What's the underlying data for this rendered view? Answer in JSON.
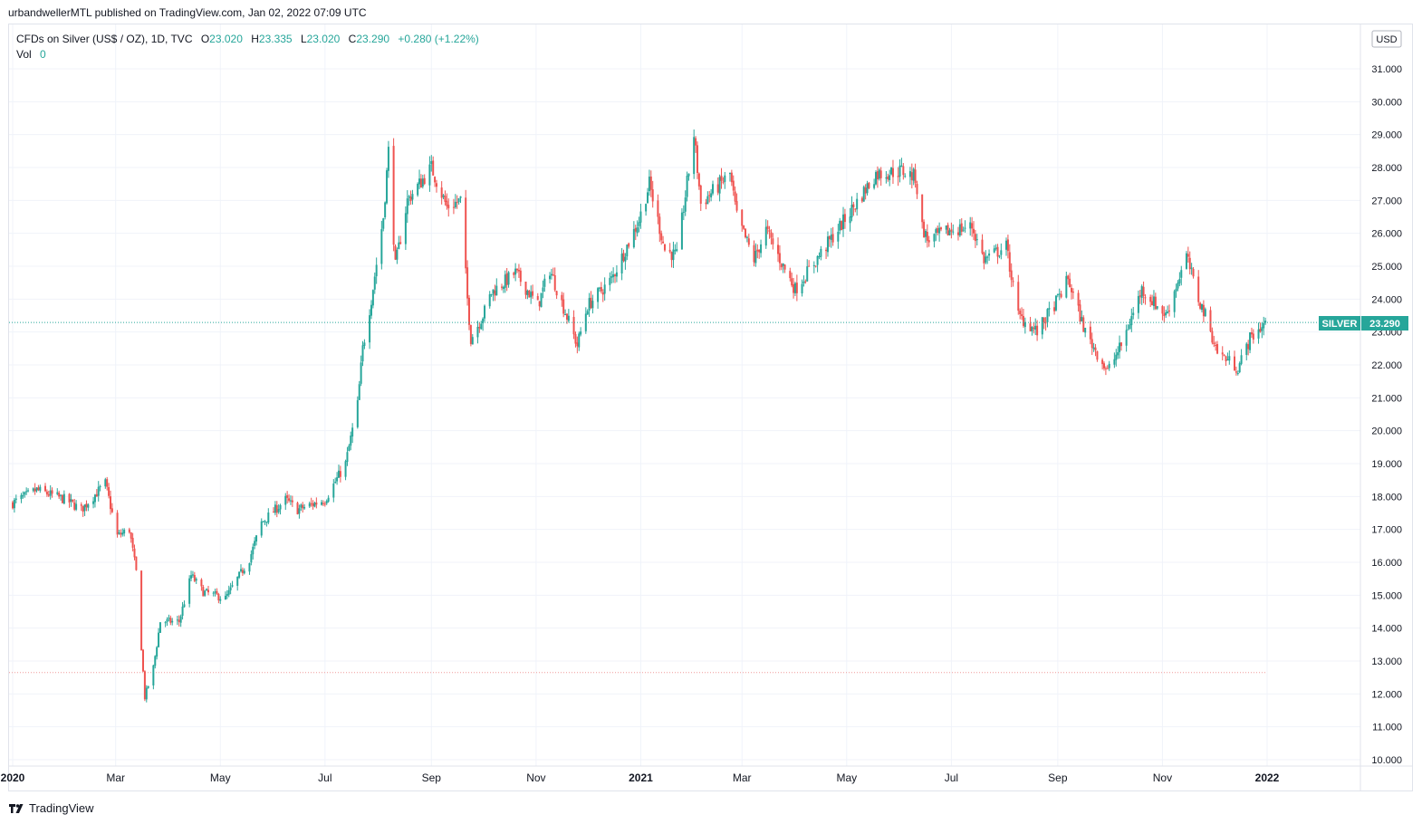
{
  "header": {
    "published_text": "urbandwellerMTL published on TradingView.com, Jan 02, 2022 07:09 UTC"
  },
  "legend": {
    "symbol_text": "CFDs on Silver (US$ / OZ), 1D, TVC",
    "o_label": "O",
    "o_value": "23.020",
    "h_label": "H",
    "h_value": "23.335",
    "l_label": "L",
    "l_value": "23.020",
    "c_label": "C",
    "c_value": "23.290",
    "change_text": "+0.280 (+1.22%)",
    "vol_label": "Vol",
    "vol_value": "0"
  },
  "price_scale": {
    "currency": "USD",
    "last_label": "SILVER",
    "last_value": "23.290"
  },
  "footer": {
    "brand": "TradingView"
  },
  "colors": {
    "up": "#26a69a",
    "down": "#ef5350",
    "grid": "#f0f3fa",
    "text": "#131722"
  },
  "chart_data": {
    "type": "candlestick",
    "title": "CFDs on Silver (US$ / OZ), 1D, TVC",
    "ylim": [
      10,
      32
    ],
    "y_ticks": [
      "10.000",
      "11.000",
      "12.000",
      "13.000",
      "14.000",
      "15.000",
      "16.000",
      "17.000",
      "18.000",
      "19.000",
      "20.000",
      "21.000",
      "22.000",
      "23.000",
      "24.000",
      "25.000",
      "26.000",
      "27.000",
      "28.000",
      "29.000",
      "30.000",
      "31.000"
    ],
    "x_ticks": [
      {
        "label": "2020",
        "month_index": 0,
        "bold": true
      },
      {
        "label": "Mar",
        "month_index": 2
      },
      {
        "label": "May",
        "month_index": 4
      },
      {
        "label": "Jul",
        "month_index": 6
      },
      {
        "label": "Sep",
        "month_index": 8
      },
      {
        "label": "Nov",
        "month_index": 10
      },
      {
        "label": "2021",
        "month_index": 12,
        "bold": true
      },
      {
        "label": "Mar",
        "month_index": 14
      },
      {
        "label": "May",
        "month_index": 16
      },
      {
        "label": "Jul",
        "month_index": 18
      },
      {
        "label": "Sep",
        "month_index": 20
      },
      {
        "label": "Nov",
        "month_index": 22
      },
      {
        "label": "2022",
        "month_index": 24,
        "bold": true
      }
    ],
    "last_price": 23.29,
    "horizontal_line": 12.65,
    "series": [
      {
        "name": "Close",
        "anchors": [
          [
            "2020-01-01",
            17.8
          ],
          [
            "2020-01-15",
            18.2
          ],
          [
            "2020-02-01",
            17.9
          ],
          [
            "2020-02-10",
            17.6
          ],
          [
            "2020-02-24",
            18.4
          ],
          [
            "2020-03-02",
            16.8
          ],
          [
            "2020-03-09",
            17.0
          ],
          [
            "2020-03-13",
            15.7
          ],
          [
            "2020-03-18",
            11.9
          ],
          [
            "2020-03-23",
            12.8
          ],
          [
            "2020-03-27",
            14.2
          ],
          [
            "2020-04-07",
            14.2
          ],
          [
            "2020-04-14",
            15.6
          ],
          [
            "2020-04-21",
            15.1
          ],
          [
            "2020-05-04",
            14.9
          ],
          [
            "2020-05-18",
            16.1
          ],
          [
            "2020-05-25",
            17.2
          ],
          [
            "2020-06-08",
            17.9
          ],
          [
            "2020-06-15",
            17.6
          ],
          [
            "2020-07-01",
            17.9
          ],
          [
            "2020-07-13",
            19.0
          ],
          [
            "2020-07-20",
            20.8
          ],
          [
            "2020-07-23",
            22.5
          ],
          [
            "2020-07-28",
            24.0
          ],
          [
            "2020-08-04",
            26.5
          ],
          [
            "2020-08-07",
            28.5
          ],
          [
            "2020-08-11",
            25.0
          ],
          [
            "2020-08-18",
            27.0
          ],
          [
            "2020-09-01",
            28.0
          ],
          [
            "2020-09-10",
            26.8
          ],
          [
            "2020-09-18",
            27.0
          ],
          [
            "2020-09-22",
            24.0
          ],
          [
            "2020-09-24",
            22.8
          ],
          [
            "2020-10-01",
            23.5
          ],
          [
            "2020-10-06",
            24.2
          ],
          [
            "2020-10-20",
            24.8
          ],
          [
            "2020-11-02",
            23.8
          ],
          [
            "2020-11-09",
            24.9
          ],
          [
            "2020-11-25",
            22.6
          ],
          [
            "2020-12-01",
            23.8
          ],
          [
            "2020-12-15",
            24.6
          ],
          [
            "2020-12-31",
            26.4
          ],
          [
            "2021-01-06",
            27.5
          ],
          [
            "2021-01-15",
            25.5
          ],
          [
            "2021-01-22",
            25.3
          ],
          [
            "2021-02-01",
            29.0
          ],
          [
            "2021-02-05",
            26.9
          ],
          [
            "2021-02-22",
            27.8
          ],
          [
            "2021-02-26",
            26.5
          ],
          [
            "2021-03-08",
            25.2
          ],
          [
            "2021-03-15",
            26.1
          ],
          [
            "2021-03-25",
            25.0
          ],
          [
            "2021-04-01",
            24.3
          ],
          [
            "2021-04-12",
            25.1
          ],
          [
            "2021-04-27",
            26.2
          ],
          [
            "2021-05-05",
            26.8
          ],
          [
            "2021-05-18",
            27.8
          ],
          [
            "2021-06-02",
            27.9
          ],
          [
            "2021-06-10",
            27.7
          ],
          [
            "2021-06-14",
            26.2
          ],
          [
            "2021-06-17",
            25.8
          ],
          [
            "2021-07-01",
            26.1
          ],
          [
            "2021-07-13",
            26.2
          ],
          [
            "2021-07-20",
            25.2
          ],
          [
            "2021-08-02",
            25.6
          ],
          [
            "2021-08-09",
            23.5
          ],
          [
            "2021-08-20",
            23.0
          ],
          [
            "2021-09-01",
            24.0
          ],
          [
            "2021-09-07",
            24.6
          ],
          [
            "2021-09-17",
            23.0
          ],
          [
            "2021-09-30",
            21.8
          ],
          [
            "2021-10-08",
            22.6
          ],
          [
            "2021-10-20",
            24.3
          ],
          [
            "2021-11-03",
            23.5
          ],
          [
            "2021-11-15",
            25.3
          ],
          [
            "2021-11-22",
            24.0
          ],
          [
            "2021-11-26",
            23.5
          ],
          [
            "2021-12-03",
            22.4
          ],
          [
            "2021-12-15",
            21.9
          ],
          [
            "2021-12-22",
            22.8
          ],
          [
            "2021-12-31",
            23.29
          ]
        ]
      }
    ]
  }
}
